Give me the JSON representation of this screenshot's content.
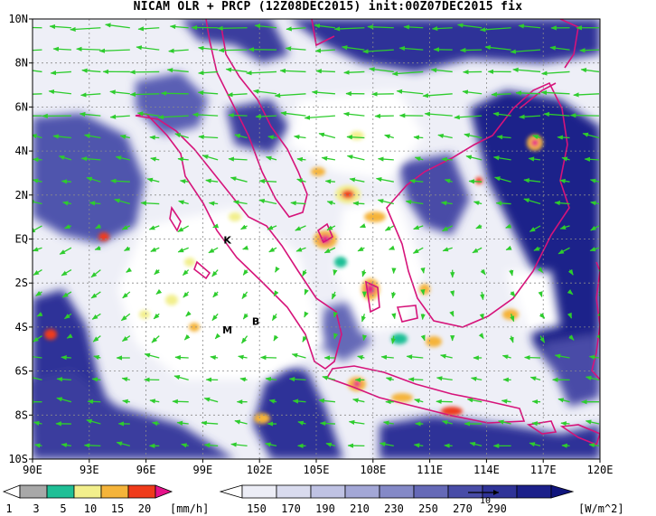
{
  "title": "NICAM OLR + PRCP (12Z08DEC2015) init:00Z07DEC2015 fix",
  "lat_labels": [
    "10N",
    "8N",
    "6N",
    "4N",
    "2N",
    "EQ",
    "2S",
    "4S",
    "6S",
    "8S",
    "10S"
  ],
  "lon_labels": [
    "90E",
    "93E",
    "96E",
    "99E",
    "102E",
    "105E",
    "108E",
    "111E",
    "114E",
    "117E",
    "120E"
  ],
  "map_markers": [
    {
      "id": "K",
      "label": "K",
      "lon": 100.3,
      "lat": -0.2
    },
    {
      "id": "M",
      "label": "M",
      "lon": 100.3,
      "lat": -4.3
    },
    {
      "id": "B",
      "label": "B",
      "lon": 101.8,
      "lat": -3.9
    }
  ],
  "precip_colorbar": {
    "ticks": [
      "1",
      "3",
      "5",
      "10",
      "15",
      "20"
    ],
    "unit": "[mm/h]",
    "colors": [
      "#a8a8a8",
      "#1fbf96",
      "#f2ef8c",
      "#f5b43a",
      "#ef3b1a",
      "#e5128a"
    ]
  },
  "olr_colorbar": {
    "ticks": [
      "150",
      "170",
      "190",
      "210",
      "230",
      "250",
      "270",
      "290"
    ],
    "unit": "[W/m^2]",
    "colors": [
      "#ffffff",
      "#ecedf6",
      "#d9dbee",
      "#bfc2e3",
      "#a3a7d6",
      "#8489c7",
      "#6569b7",
      "#484ca7",
      "#2f3398",
      "#1c208a",
      "#10157d"
    ]
  },
  "wind_reference": {
    "label": "10"
  },
  "colors": {
    "wind": "#2ecc2e",
    "coast": "#d6137a",
    "precip_max": "#e5128a"
  }
}
